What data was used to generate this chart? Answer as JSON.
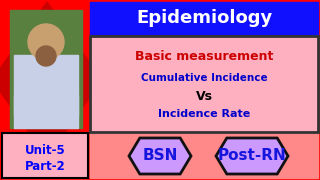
{
  "bg_color": "#FF0000",
  "title_bg": "#1010FF",
  "title_text": "Epidemiology",
  "title_color": "#FFFFFF",
  "content_bg": "#FFB0C0",
  "content_border_color": "#333333",
  "line1_text": "Basic measurement",
  "line1_color": "#CC0000",
  "line2_text": "Cumulative Incidence",
  "line2_color": "#0000CC",
  "line3_text": "Vs",
  "line3_color": "#000000",
  "line4_text": "Incidence Rate",
  "line4_color": "#0000CC",
  "unit_bg": "#FFB0C0",
  "unit_text1": "Unit-5",
  "unit_text2": "Part-2",
  "unit_color": "#0000FF",
  "bsn_bg": "#CC99FF",
  "bsn_text": "BSN",
  "bsn_color": "#1515DD",
  "postrn_bg": "#CC99FF",
  "postrn_text": "Post-RN",
  "postrn_color": "#1515DD",
  "bottom_bar_bg": "#FF8888",
  "diamond_color": "#CC0000",
  "photo_shirt": "#C8D0E8",
  "photo_skin": "#C8A070"
}
